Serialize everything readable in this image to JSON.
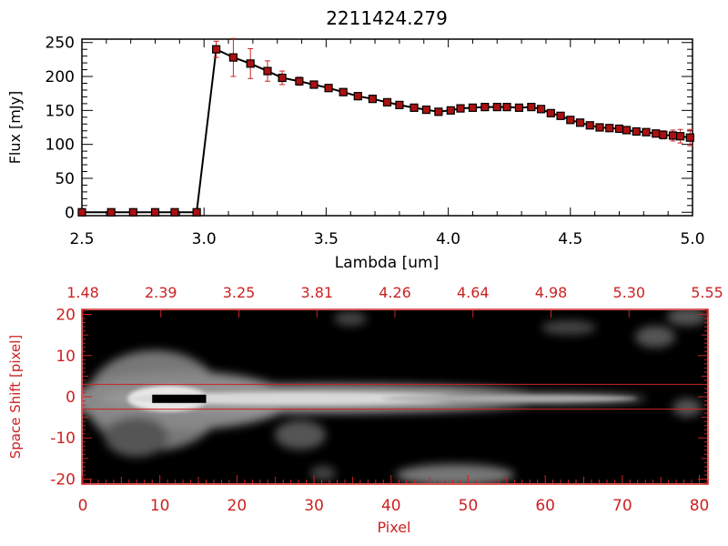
{
  "colors": {
    "axis_black": "#000000",
    "accent_red": "#cc2222",
    "marker_red": "#aa1111",
    "line_black": "#000000"
  },
  "chart_data": [
    {
      "type": "line",
      "title": "2211424.279",
      "xlabel": "Lambda [um]",
      "ylabel": "Flux [mJy]",
      "xlim": [
        2.5,
        5.0
      ],
      "ylim": [
        -5,
        255
      ],
      "xticks": [
        "2.5",
        "3.0",
        "3.5",
        "4.0",
        "4.5",
        "5.0"
      ],
      "yticks": [
        "0",
        "50",
        "100",
        "150",
        "200",
        "250"
      ],
      "series": [
        {
          "x": [
            2.5,
            2.62,
            2.71,
            2.8,
            2.88,
            2.97,
            3.05,
            3.12,
            3.19,
            3.26,
            3.32,
            3.39,
            3.45,
            3.51,
            3.57,
            3.63,
            3.69,
            3.75,
            3.8,
            3.86,
            3.91,
            3.96,
            4.01,
            4.05,
            4.1,
            4.15,
            4.2,
            4.24,
            4.29,
            4.34,
            4.38,
            4.42,
            4.46,
            4.5,
            4.54,
            4.58,
            4.62,
            4.66,
            4.7,
            4.73,
            4.77,
            4.81,
            4.85,
            4.88,
            4.92,
            4.95,
            4.99
          ],
          "y": [
            0,
            0,
            0,
            0,
            0,
            0,
            240,
            228,
            219,
            208,
            198,
            193,
            188,
            183,
            177,
            171,
            167,
            162,
            158,
            154,
            151,
            148,
            150,
            153,
            154,
            155,
            155,
            155,
            154,
            155,
            152,
            146,
            142,
            136,
            132,
            128,
            125,
            124,
            123,
            121,
            119,
            118,
            116,
            114,
            113,
            112,
            110
          ],
          "yerr": [
            0,
            0,
            0,
            0,
            0,
            0,
            12,
            28,
            22,
            15,
            10,
            6,
            5,
            4,
            4,
            4,
            4,
            4,
            4,
            4,
            4,
            4,
            4,
            4,
            4,
            4,
            4,
            4,
            4,
            4,
            4,
            4,
            4,
            4,
            4,
            4,
            4,
            4,
            4,
            4,
            4,
            4,
            5,
            6,
            8,
            10,
            12
          ]
        }
      ]
    },
    {
      "type": "heatmap",
      "xlabel": "Pixel",
      "ylabel": "Space Shift [pixel]",
      "xlim": [
        0,
        81
      ],
      "ylim": [
        -21,
        21
      ],
      "xticks": [
        "0",
        "10",
        "20",
        "30",
        "40",
        "50",
        "60",
        "70",
        "80"
      ],
      "yticks": [
        "-20",
        "-10",
        "0",
        "10",
        "20"
      ],
      "top_axis_ticks": [
        "1.48",
        "2.39",
        "3.25",
        "3.81",
        "4.26",
        "4.64",
        "4.98",
        "5.30",
        "5.55"
      ],
      "extraction_window": [
        -3,
        3
      ],
      "saturated_region": {
        "x": [
          9,
          16
        ],
        "y": [
          -1.5,
          0.5
        ]
      }
    }
  ]
}
